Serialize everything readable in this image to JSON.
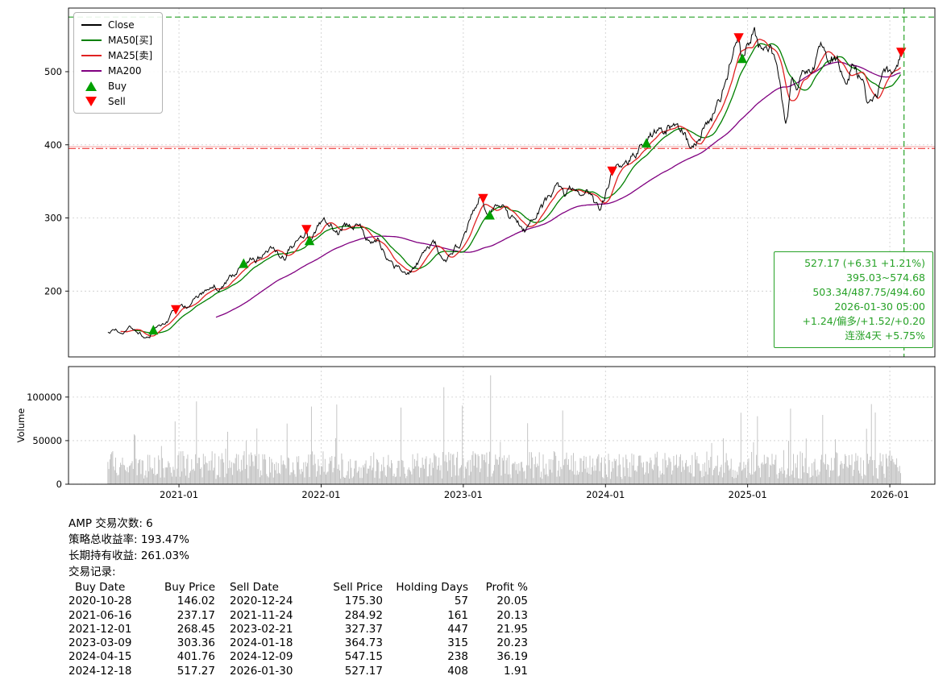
{
  "colors": {
    "close": "#000000",
    "ma50": "#008000",
    "ma25": "#e02222",
    "ma200": "#800080",
    "buy": "#00a000",
    "sell": "#ff0000",
    "annotation": "#27a227",
    "high_line": "#27a227",
    "low_line": "#ef3b3b",
    "low_line_soft": "#f5b4b4",
    "grid": "#cccccc",
    "volume_bar": "#bfbfbf",
    "axis": "#000000"
  },
  "legend": {
    "items": [
      {
        "label": "Close",
        "type": "line",
        "color_key": "close"
      },
      {
        "label": "MA50[买]",
        "type": "line",
        "color_key": "ma50"
      },
      {
        "label": "MA25[卖]",
        "type": "line",
        "color_key": "ma25"
      },
      {
        "label": "MA200",
        "type": "line",
        "color_key": "ma200"
      },
      {
        "label": "Buy",
        "type": "triangle-up",
        "color_key": "buy"
      },
      {
        "label": "Sell",
        "type": "triangle-down",
        "color_key": "sell"
      }
    ]
  },
  "annotation_box": {
    "lines": [
      "527.17 (+6.31 +1.21%)",
      "395.03~574.68",
      "503.34/487.75/494.60",
      "2026-01-30 05:00",
      "+1.24/偏多/+1.52/+0.20",
      "连涨4天 +5.75%"
    ]
  },
  "summary": {
    "lines": [
      "AMP 交易次数: 6",
      "策略总收益率: 193.47%",
      "长期持有收益: 261.03%",
      "交易记录:"
    ]
  },
  "trades": {
    "headers": [
      "Buy Date",
      "Buy Price",
      "Sell Date",
      "Sell Price",
      "Holding Days",
      "Profit %"
    ],
    "rows": [
      [
        "2020-10-28",
        "146.02",
        "2020-12-24",
        "175.30",
        "57",
        "20.05"
      ],
      [
        "2021-06-16",
        "237.17",
        "2021-11-24",
        "284.92",
        "161",
        "20.13"
      ],
      [
        "2021-12-01",
        "268.45",
        "2023-02-21",
        "327.37",
        "447",
        "21.95"
      ],
      [
        "2023-03-09",
        "303.36",
        "2024-01-18",
        "364.73",
        "315",
        "20.23"
      ],
      [
        "2024-04-15",
        "401.76",
        "2024-12-09",
        "547.15",
        "238",
        "36.19"
      ],
      [
        "2024-12-18",
        "517.27",
        "2026-01-30",
        "527.17",
        "408",
        "1.91"
      ]
    ]
  },
  "chart_data": {
    "type": "line",
    "title": "",
    "x_ticks": [
      "2021-01",
      "2022-01",
      "2023-01",
      "2024-01",
      "2025-01",
      "2026-01"
    ],
    "x_tick_values": [
      2021,
      2022,
      2023,
      2024,
      2025,
      2026
    ],
    "x_range": [
      2020.223,
      2026.317
    ],
    "price_ticks": [
      200,
      300,
      400,
      500
    ],
    "price_range": [
      110,
      587
    ],
    "volume_ticks": [
      0,
      50000,
      100000
    ],
    "volume_tick_labels": [
      "0",
      "50000",
      "100000"
    ],
    "volume_range": [
      0,
      135000
    ],
    "volume_label": "Volume",
    "step_years": 0.00685,
    "last_price": 527.17,
    "series_names": [
      "Close",
      "MA50[买]",
      "MA25[卖]",
      "MA200"
    ],
    "close_anchors": [
      [
        2020.5,
        142
      ],
      [
        2020.55,
        147
      ],
      [
        2020.6,
        143
      ],
      [
        2020.65,
        150
      ],
      [
        2020.7,
        146
      ],
      [
        2020.75,
        138
      ],
      [
        2020.79,
        134
      ],
      [
        2020.82,
        146.02
      ],
      [
        2020.87,
        152
      ],
      [
        2020.92,
        160
      ],
      [
        2020.978,
        175.3
      ],
      [
        2021.02,
        181
      ],
      [
        2021.06,
        176
      ],
      [
        2021.1,
        188
      ],
      [
        2021.15,
        196
      ],
      [
        2021.2,
        201
      ],
      [
        2021.25,
        208
      ],
      [
        2021.28,
        204
      ],
      [
        2021.33,
        214
      ],
      [
        2021.38,
        222
      ],
      [
        2021.42,
        230
      ],
      [
        2021.455,
        237.17
      ],
      [
        2021.5,
        242
      ],
      [
        2021.54,
        238
      ],
      [
        2021.58,
        247
      ],
      [
        2021.62,
        253
      ],
      [
        2021.66,
        258
      ],
      [
        2021.7,
        252
      ],
      [
        2021.74,
        248
      ],
      [
        2021.78,
        258
      ],
      [
        2021.82,
        266
      ],
      [
        2021.86,
        276
      ],
      [
        2021.897,
        284.92
      ],
      [
        2021.918,
        268.45
      ],
      [
        2021.96,
        280
      ],
      [
        2022.0,
        292
      ],
      [
        2022.04,
        298
      ],
      [
        2022.08,
        288
      ],
      [
        2022.12,
        278
      ],
      [
        2022.16,
        290
      ],
      [
        2022.2,
        287
      ],
      [
        2022.25,
        292
      ],
      [
        2022.3,
        280
      ],
      [
        2022.35,
        262
      ],
      [
        2022.4,
        270
      ],
      [
        2022.45,
        252
      ],
      [
        2022.5,
        238
      ],
      [
        2022.55,
        228
      ],
      [
        2022.6,
        217
      ],
      [
        2022.65,
        232
      ],
      [
        2022.7,
        244
      ],
      [
        2022.75,
        258
      ],
      [
        2022.8,
        262
      ],
      [
        2022.85,
        248
      ],
      [
        2022.88,
        238
      ],
      [
        2022.92,
        252
      ],
      [
        2022.96,
        260
      ],
      [
        2023.0,
        268
      ],
      [
        2023.04,
        290
      ],
      [
        2023.08,
        312
      ],
      [
        2023.12,
        332
      ],
      [
        2023.139,
        327.37
      ],
      [
        2023.186,
        303.36
      ],
      [
        2023.24,
        318
      ],
      [
        2023.28,
        312
      ],
      [
        2023.32,
        300
      ],
      [
        2023.36,
        310
      ],
      [
        2023.4,
        295
      ],
      [
        2023.44,
        282
      ],
      [
        2023.48,
        292
      ],
      [
        2023.52,
        305
      ],
      [
        2023.56,
        315
      ],
      [
        2023.6,
        325
      ],
      [
        2023.64,
        332
      ],
      [
        2023.68,
        340
      ],
      [
        2023.72,
        330
      ],
      [
        2023.76,
        338
      ],
      [
        2023.8,
        330
      ],
      [
        2023.84,
        322
      ],
      [
        2023.88,
        332
      ],
      [
        2023.92,
        318
      ],
      [
        2023.96,
        310
      ],
      [
        2024.0,
        332
      ],
      [
        2024.047,
        364.73
      ],
      [
        2024.08,
        372
      ],
      [
        2024.12,
        368
      ],
      [
        2024.16,
        380
      ],
      [
        2024.2,
        388
      ],
      [
        2024.24,
        396
      ],
      [
        2024.288,
        401.76
      ],
      [
        2024.33,
        412
      ],
      [
        2024.37,
        420
      ],
      [
        2024.41,
        415
      ],
      [
        2024.45,
        425
      ],
      [
        2024.49,
        430
      ],
      [
        2024.53,
        422
      ],
      [
        2024.57,
        408
      ],
      [
        2024.61,
        398
      ],
      [
        2024.65,
        412
      ],
      [
        2024.7,
        428
      ],
      [
        2024.75,
        440
      ],
      [
        2024.8,
        465
      ],
      [
        2024.85,
        495
      ],
      [
        2024.9,
        525
      ],
      [
        2024.937,
        547.15
      ],
      [
        2024.962,
        517.27
      ],
      [
        2025.0,
        540
      ],
      [
        2025.04,
        558
      ],
      [
        2025.08,
        540
      ],
      [
        2025.12,
        550
      ],
      [
        2025.16,
        535
      ],
      [
        2025.2,
        500
      ],
      [
        2025.24,
        455
      ],
      [
        2025.27,
        432
      ],
      [
        2025.31,
        478
      ],
      [
        2025.35,
        468
      ],
      [
        2025.39,
        488
      ],
      [
        2025.43,
        498
      ],
      [
        2025.47,
        512
      ],
      [
        2025.51,
        528
      ],
      [
        2025.55,
        518
      ],
      [
        2025.59,
        524
      ],
      [
        2025.63,
        512
      ],
      [
        2025.67,
        505
      ],
      [
        2025.71,
        498
      ],
      [
        2025.75,
        512
      ],
      [
        2025.79,
        495
      ],
      [
        2025.83,
        470
      ],
      [
        2025.87,
        452
      ],
      [
        2025.91,
        468
      ],
      [
        2025.95,
        486
      ],
      [
        2026.0,
        498
      ],
      [
        2026.04,
        506
      ],
      [
        2026.08,
        527.17
      ]
    ],
    "ma_defs": [
      {
        "name": "MA200",
        "slug": "ma200-line",
        "window": 112,
        "color_key": "ma200"
      },
      {
        "name": "MA50[买]",
        "slug": "ma50-line",
        "window": 28,
        "color_key": "ma50"
      },
      {
        "name": "MA25[卖]",
        "slug": "ma25-line",
        "window": 14,
        "color_key": "ma25"
      }
    ],
    "buy_markers": [
      {
        "date": "2020-10-28",
        "t": 2020.82,
        "price": 146.02
      },
      {
        "date": "2021-06-16",
        "t": 2021.455,
        "price": 237.17
      },
      {
        "date": "2021-12-01",
        "t": 2021.918,
        "price": 268.45
      },
      {
        "date": "2023-03-09",
        "t": 2023.186,
        "price": 303.36
      },
      {
        "date": "2024-04-15",
        "t": 2024.288,
        "price": 401.76
      },
      {
        "date": "2024-12-18",
        "t": 2024.962,
        "price": 517.27
      }
    ],
    "sell_markers": [
      {
        "date": "2020-12-24",
        "t": 2020.978,
        "price": 175.3
      },
      {
        "date": "2021-11-24",
        "t": 2021.897,
        "price": 284.92
      },
      {
        "date": "2023-02-21",
        "t": 2023.139,
        "price": 327.37
      },
      {
        "date": "2024-01-18",
        "t": 2024.047,
        "price": 364.73
      },
      {
        "date": "2024-12-09",
        "t": 2024.937,
        "price": 547.15
      },
      {
        "date": "2026-01-30",
        "t": 2026.08,
        "price": 527.17
      }
    ],
    "hlines": [
      {
        "name": "period-high-line",
        "value": 574.68,
        "style": "dashed",
        "color_key": "high_line",
        "width": 1.1
      },
      {
        "name": "support-soft-line",
        "value": 397.5,
        "style": "solid",
        "color_key": "low_line_soft",
        "width": 1.2
      },
      {
        "name": "period-low-line",
        "value": 395.03,
        "style": "dashdot",
        "color_key": "low_line",
        "width": 1.1
      }
    ],
    "vline": {
      "name": "current-date-line",
      "t": 2026.1,
      "style": "dashed",
      "color_key": "high_line"
    },
    "volume_spikes": [
      [
        2020.97,
        72000
      ],
      [
        2021.12,
        95000
      ],
      [
        2021.55,
        64000
      ],
      [
        2022.56,
        88000
      ],
      [
        2023.19,
        125000
      ],
      [
        2023.45,
        70000
      ],
      [
        2024.95,
        82000
      ],
      [
        2025.07,
        78000
      ]
    ]
  }
}
